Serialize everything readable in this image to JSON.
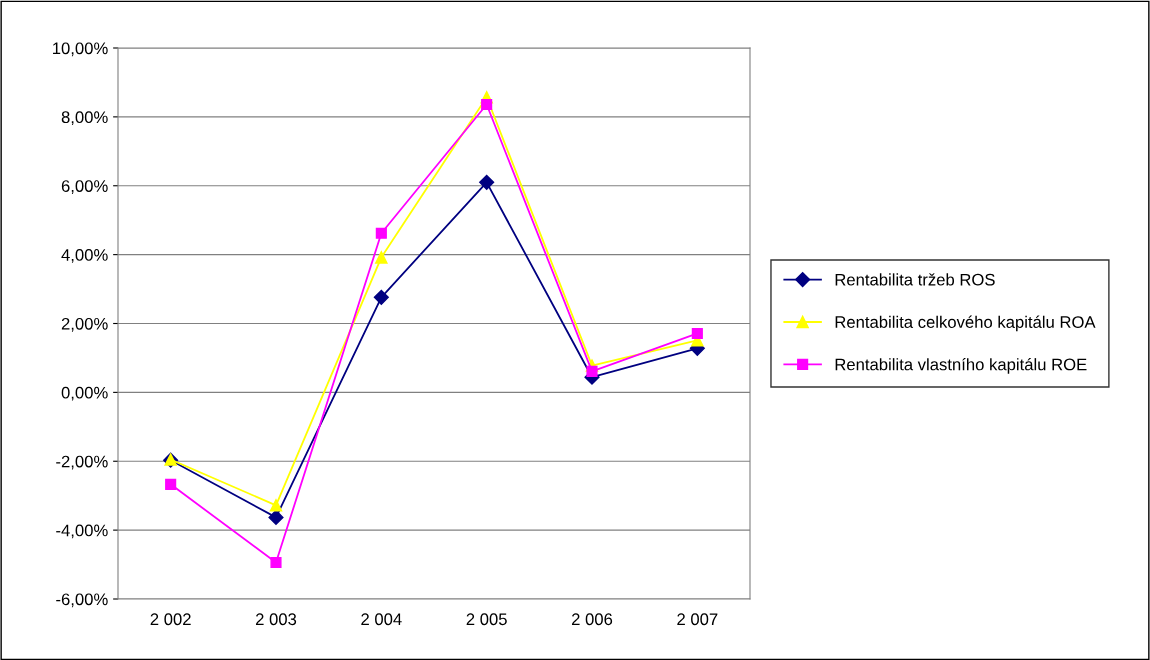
{
  "chart_data": {
    "type": "line",
    "categories": [
      "2 002",
      "2 003",
      "2 004",
      "2 005",
      "2 006",
      "2 007"
    ],
    "series": [
      {
        "name": "Rentabilita tržeb ROS",
        "color": "#000080",
        "marker": "diamond",
        "values": [
          -1.97,
          -3.63,
          2.76,
          6.1,
          0.44,
          1.28
        ]
      },
      {
        "name": "Rentabilita celkového kapitálu ROA",
        "color": "#ffff00",
        "marker": "triangle",
        "values": [
          -1.95,
          -3.28,
          3.92,
          8.57,
          0.78,
          1.51
        ]
      },
      {
        "name": "Rentabilita vlastního kapitálu ROE",
        "color": "#ff00ff",
        "marker": "square",
        "values": [
          -2.67,
          -4.94,
          4.62,
          8.36,
          0.61,
          1.71
        ]
      }
    ],
    "ylim": [
      -6,
      10
    ],
    "yticks": [
      {
        "value": -6,
        "label": "-6,00%"
      },
      {
        "value": -4,
        "label": "-4,00%"
      },
      {
        "value": -2,
        "label": "-2,00%"
      },
      {
        "value": 0,
        "label": "0,00%"
      },
      {
        "value": 2,
        "label": "2,00%"
      },
      {
        "value": 4,
        "label": "4,00%"
      },
      {
        "value": 6,
        "label": "6,00%"
      },
      {
        "value": 8,
        "label": "8,00%"
      },
      {
        "value": 10,
        "label": "10,00%"
      }
    ],
    "grid": "y",
    "legend": "right",
    "line_style": "solid"
  }
}
